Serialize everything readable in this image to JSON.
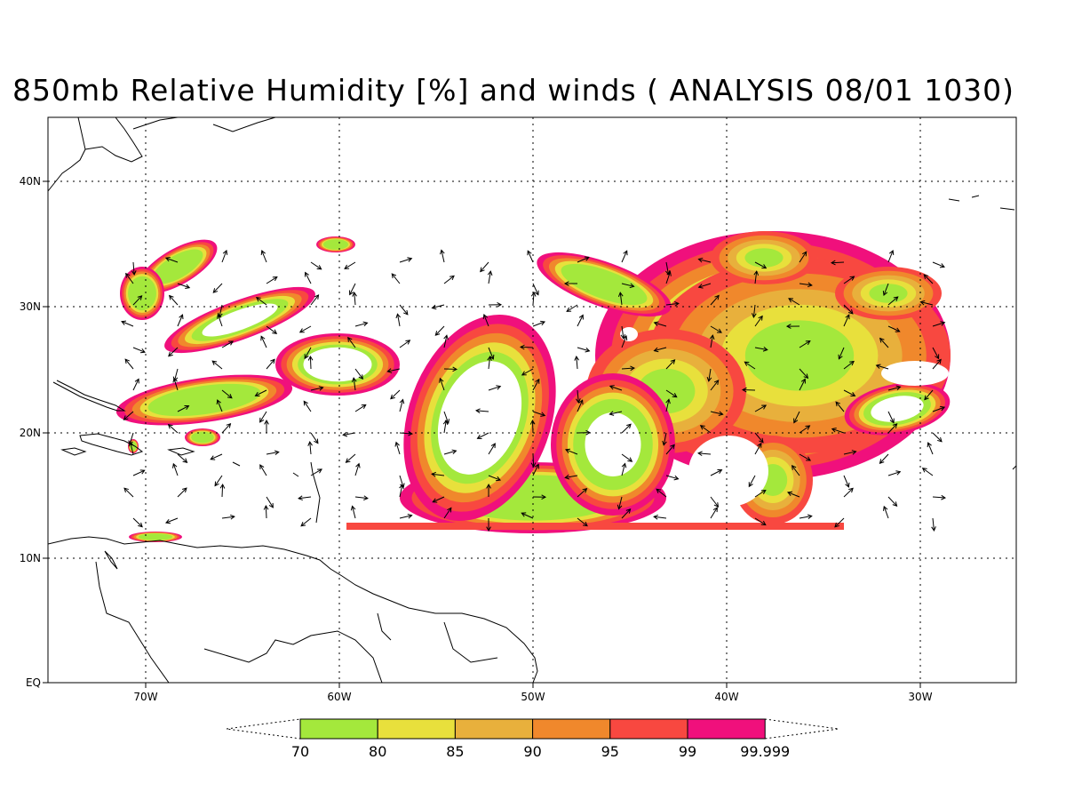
{
  "title": "850mb Relative Humidity [%] and winds ( ANALYSIS 08/01 1030)",
  "axes": {
    "lon_ticks": [
      "70W",
      "60W",
      "50W",
      "40W",
      "30W"
    ],
    "lat_ticks": [
      "EQ",
      "10N",
      "20N",
      "30N",
      "40N"
    ]
  },
  "colorbar": {
    "labels": [
      "70",
      "80",
      "85",
      "90",
      "95",
      "99",
      "99.999"
    ],
    "colors": [
      "#a4e83c",
      "#e8e03c",
      "#e8b03c",
      "#f0882c",
      "#f84840",
      "#f0107c"
    ]
  },
  "colors": {
    "land_outline": "#000000",
    "grid": "#000000",
    "wind_arrow": "#000000"
  }
}
